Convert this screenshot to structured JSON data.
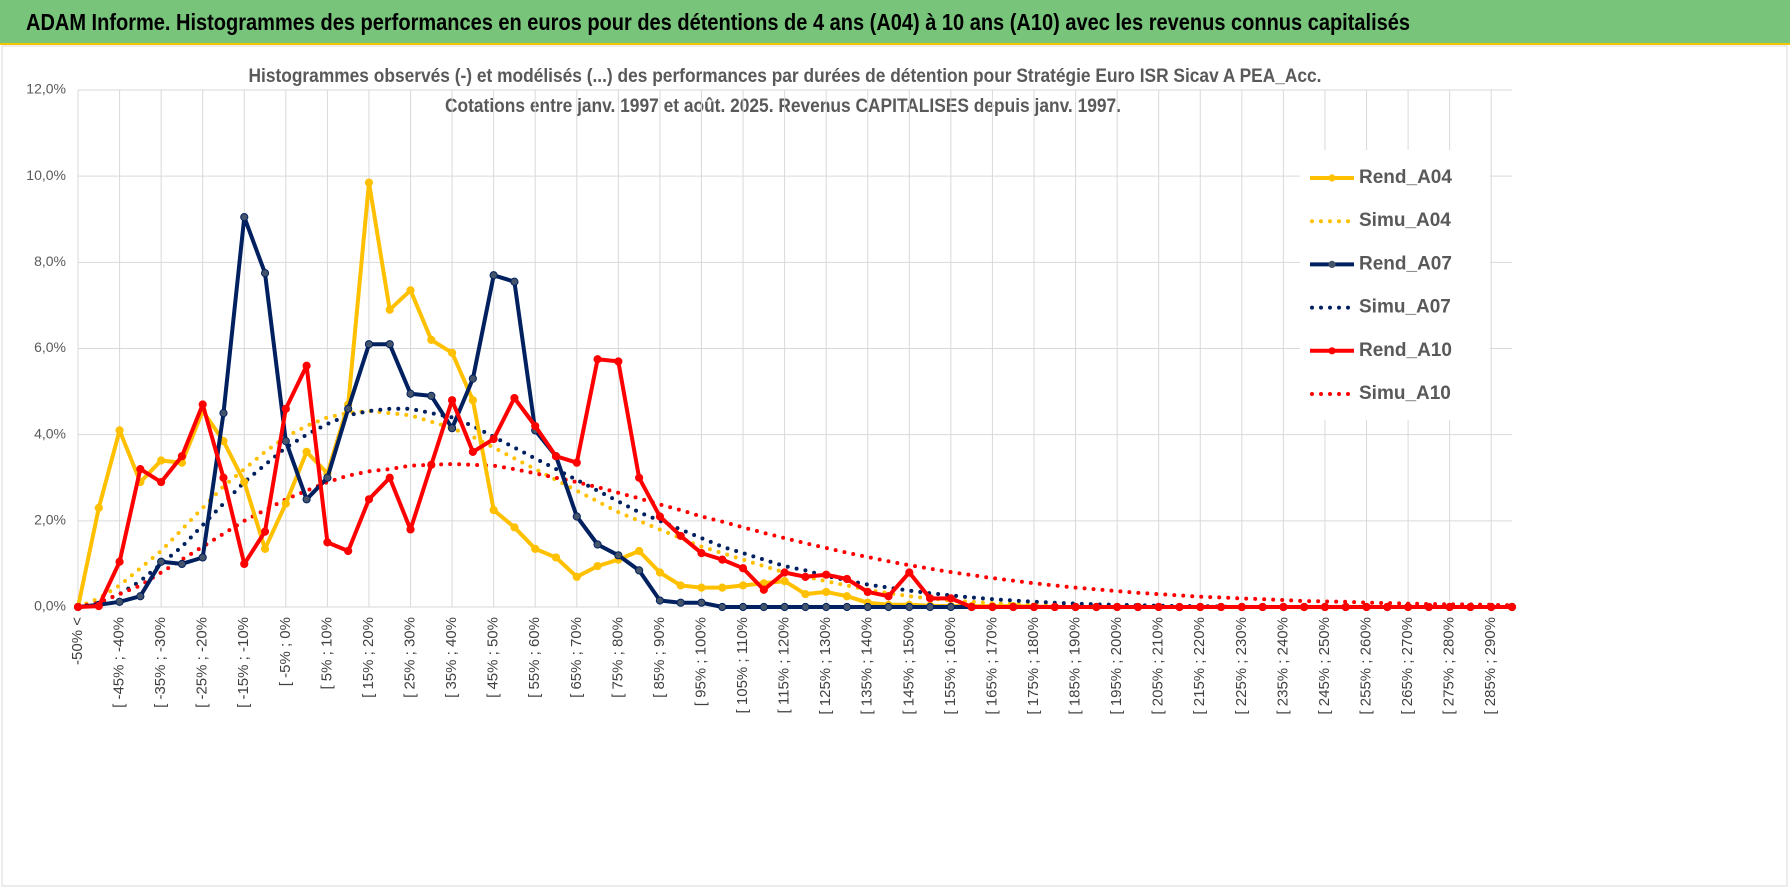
{
  "header": {
    "title": "ADAM Informe. Histogrammes des performances en euros pour des détentions de 4 ans (A04) à 10 ans (A10) avec les revenus connus capitalisés"
  },
  "chart_data": {
    "type": "line",
    "title": "Histogrammes observés (-) et modélisés (...) des performances par durées de détention pour Stratégie Euro ISR Sicav A PEA_Acc.",
    "subtitle": "Cotations entre janv. 1997 et août. 2025. Revenus CAPITALISES depuis janv. 1997.",
    "categories": [
      "-50% <",
      null,
      "[ -45% ; -40%",
      null,
      "[ -35% ; -30%",
      null,
      "[ -25% ; -20%",
      null,
      "[ -15% ; -10%",
      null,
      "[ -5% ; 0%",
      null,
      "[ 5% ; 10%",
      null,
      "[ 15% ; 20%",
      null,
      "[ 25% ; 30%",
      null,
      "[ 35% ; 40%",
      null,
      "[ 45% ; 50%",
      null,
      "[ 55% ; 60%",
      null,
      "[ 65% ; 70%",
      null,
      "[ 75% ; 80%",
      null,
      "[ 85% ; 90%",
      null,
      "[ 95% ; 100%",
      null,
      "[ 105% ; 110%",
      null,
      "[ 115% ; 120%",
      null,
      "[ 125% ; 130%",
      null,
      "[ 135% ; 140%",
      null,
      "[ 145% ; 150%",
      null,
      "[ 155% ; 160%",
      null,
      "[ 165% ; 170%",
      null,
      "[ 175% ; 180%",
      null,
      "[ 185% ; 190%",
      null,
      "[ 195% ; 200%",
      null,
      "[ 205% ; 210%",
      null,
      "[ 215% ; 220%",
      null,
      "[ 225% ; 230%",
      null,
      "[ 235% ; 240%",
      null,
      "[ 245% ; 250%",
      null,
      "[ 255% ; 260%",
      null,
      "[ 265% ; 270%",
      null,
      "[ 275% ; 280%",
      null,
      "[ 285% ; 290%",
      null
    ],
    "series": [
      {
        "name": "Rend_A04",
        "color": "#ffc000",
        "style": "solid",
        "values": [
          0,
          2.3,
          4.1,
          2.9,
          3.4,
          3.35,
          4.55,
          3.85,
          2.9,
          1.35,
          2.4,
          3.6,
          3.1,
          4.7,
          9.85,
          6.9,
          7.35,
          6.2,
          5.9,
          4.8,
          2.25,
          1.85,
          1.35,
          1.15,
          0.7,
          0.95,
          1.1,
          1.3,
          0.8,
          0.5,
          0.45,
          0.45,
          0.5,
          0.55,
          0.6,
          0.3,
          0.35,
          0.25,
          0.1,
          0.05,
          0.05,
          0.03,
          0.02,
          0.02,
          0.02,
          0.02,
          0.01,
          0,
          0,
          0,
          0,
          0,
          0,
          0,
          0,
          0,
          0,
          0,
          0,
          0,
          0,
          0,
          0,
          0,
          0,
          0,
          0,
          0,
          0,
          0
        ]
      },
      {
        "name": "Simu_A04",
        "color": "#ffc000",
        "style": "dotted",
        "values": [
          0,
          0.2,
          0.5,
          0.9,
          1.3,
          1.8,
          2.3,
          2.8,
          3.2,
          3.6,
          3.95,
          4.2,
          4.4,
          4.5,
          4.55,
          4.5,
          4.45,
          4.3,
          4.15,
          3.95,
          3.7,
          3.45,
          3.2,
          2.95,
          2.7,
          2.45,
          2.2,
          2.0,
          1.8,
          1.6,
          1.4,
          1.25,
          1.1,
          0.95,
          0.8,
          0.7,
          0.6,
          0.5,
          0.4,
          0.32,
          0.25,
          0.2,
          0.15,
          0.12,
          0.09,
          0.07,
          0.05,
          0.04,
          0.03,
          0.02,
          0.01,
          0,
          0,
          0,
          0,
          0,
          0,
          0,
          0,
          0,
          0,
          0,
          0,
          0,
          0,
          0,
          0,
          0,
          0,
          0
        ]
      },
      {
        "name": "Rend_A07",
        "color": "#002060",
        "style": "solid",
        "values": [
          0,
          0.05,
          0.12,
          0.25,
          1.05,
          1.0,
          1.15,
          4.5,
          9.05,
          7.75,
          3.85,
          2.5,
          3.0,
          4.6,
          6.1,
          6.1,
          4.95,
          4.9,
          4.15,
          5.3,
          7.7,
          7.55,
          4.1,
          3.5,
          2.1,
          1.45,
          1.2,
          0.85,
          0.15,
          0.1,
          0.1,
          0,
          0,
          0,
          0,
          0,
          0,
          0,
          0,
          0,
          0,
          0,
          0,
          0,
          0,
          0,
          0,
          0,
          0,
          0,
          0,
          0,
          0,
          0,
          0,
          0,
          0,
          0,
          0,
          0,
          0,
          0,
          0,
          0,
          0,
          0,
          0,
          0,
          0,
          0
        ]
      },
      {
        "name": "Simu_A07",
        "color": "#002060",
        "style": "dotted",
        "values": [
          0,
          0.1,
          0.3,
          0.6,
          1.0,
          1.4,
          1.9,
          2.4,
          2.9,
          3.3,
          3.7,
          4.0,
          4.25,
          4.45,
          4.55,
          4.6,
          4.6,
          4.5,
          4.4,
          4.2,
          3.95,
          3.7,
          3.45,
          3.2,
          2.95,
          2.7,
          2.45,
          2.2,
          2.0,
          1.8,
          1.6,
          1.4,
          1.25,
          1.1,
          0.95,
          0.85,
          0.72,
          0.62,
          0.52,
          0.45,
          0.38,
          0.32,
          0.27,
          0.22,
          0.18,
          0.15,
          0.12,
          0.1,
          0.08,
          0.06,
          0.05,
          0.04,
          0.03,
          0.02,
          0.02,
          0.01,
          0,
          0,
          0,
          0,
          0,
          0,
          0,
          0,
          0,
          0,
          0,
          0,
          0,
          0
        ]
      },
      {
        "name": "Rend_A10",
        "color": "#ff0000",
        "style": "solid",
        "values": [
          0,
          0.02,
          1.05,
          3.2,
          2.9,
          3.5,
          4.7,
          3.0,
          1.0,
          1.75,
          4.6,
          5.6,
          1.5,
          1.3,
          2.5,
          3.0,
          1.8,
          3.3,
          4.8,
          3.6,
          3.9,
          4.85,
          4.2,
          3.5,
          3.35,
          5.75,
          5.7,
          3.0,
          2.1,
          1.65,
          1.25,
          1.1,
          0.9,
          0.4,
          0.8,
          0.7,
          0.75,
          0.65,
          0.35,
          0.25,
          0.8,
          0.2,
          0.2,
          0,
          0,
          0,
          0,
          0,
          0,
          0,
          0,
          0,
          0,
          0,
          0,
          0,
          0,
          0,
          0,
          0,
          0,
          0,
          0,
          0,
          0,
          0,
          0,
          0,
          0,
          0
        ]
      },
      {
        "name": "Simu_A10",
        "color": "#ff0000",
        "style": "dotted",
        "values": [
          0,
          0.1,
          0.3,
          0.5,
          0.8,
          1.1,
          1.4,
          1.7,
          2.0,
          2.25,
          2.5,
          2.7,
          2.9,
          3.05,
          3.15,
          3.2,
          3.28,
          3.3,
          3.32,
          3.3,
          3.28,
          3.2,
          3.1,
          3.0,
          2.9,
          2.78,
          2.65,
          2.52,
          2.38,
          2.25,
          2.1,
          1.98,
          1.85,
          1.72,
          1.6,
          1.48,
          1.37,
          1.26,
          1.16,
          1.06,
          0.97,
          0.89,
          0.81,
          0.74,
          0.67,
          0.61,
          0.55,
          0.5,
          0.45,
          0.41,
          0.37,
          0.33,
          0.3,
          0.27,
          0.24,
          0.22,
          0.2,
          0.18,
          0.16,
          0.14,
          0.13,
          0.12,
          0.1,
          0.09,
          0.08,
          0.07,
          0.06,
          0.06,
          0.05,
          0.04
        ]
      }
    ],
    "ylim": [
      0,
      12
    ],
    "yticks": [
      {
        "value": 0,
        "label": "0,0%"
      },
      {
        "value": 2,
        "label": "2,0%"
      },
      {
        "value": 4,
        "label": "4,0%"
      },
      {
        "value": 6,
        "label": "6,0%"
      },
      {
        "value": 8,
        "label": "8,0%"
      },
      {
        "value": 10,
        "label": "10,0%"
      },
      {
        "value": 12,
        "label": "12,0%"
      }
    ],
    "grid": true,
    "legend": "right"
  }
}
